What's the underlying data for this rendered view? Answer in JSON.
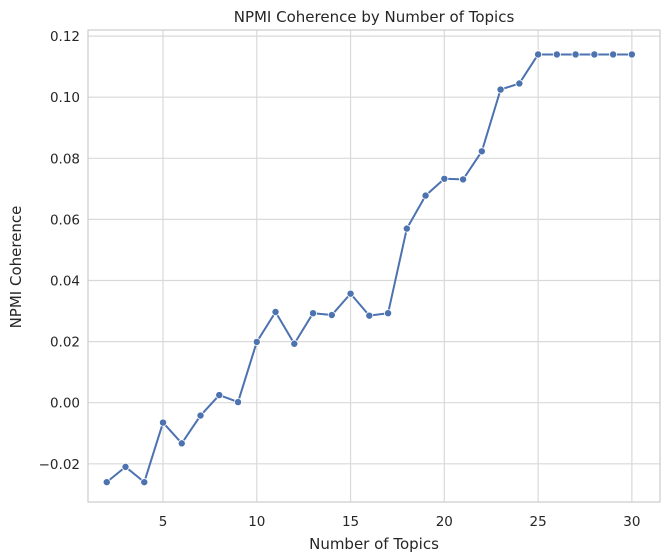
{
  "chart_data": {
    "type": "line",
    "title": "NPMI Coherence by Number of Topics",
    "xlabel": "Number of Topics",
    "ylabel": "NPMI Coherence",
    "xlim": [
      1,
      31.5
    ],
    "ylim": [
      -0.0325,
      0.122
    ],
    "x_ticks": [
      5,
      10,
      15,
      20,
      25,
      30
    ],
    "y_ticks": [
      -0.02,
      0.0,
      0.02,
      0.04,
      0.06,
      0.08,
      0.1,
      0.12
    ],
    "y_tick_labels": [
      "−0.02",
      "0.00",
      "0.02",
      "0.04",
      "0.06",
      "0.08",
      "0.10",
      "0.12"
    ],
    "grid": true,
    "series": [
      {
        "x": [
          2,
          3,
          4,
          5,
          6,
          7,
          8,
          9,
          10,
          11,
          12,
          13,
          14,
          15,
          16,
          17,
          18,
          19,
          20,
          21,
          22,
          23,
          24,
          25,
          26,
          27,
          28,
          29,
          30
        ],
        "values": [
          -0.026,
          -0.021,
          -0.026,
          -0.0065,
          -0.0133,
          -0.0042,
          0.0025,
          0.0002,
          0.0199,
          0.0297,
          0.0193,
          0.0293,
          0.0287,
          0.0357,
          0.0285,
          0.0293,
          0.057,
          0.0678,
          0.0733,
          0.0731,
          0.0823,
          0.1025,
          0.1045,
          0.114,
          0.114,
          0.114,
          0.114,
          0.114,
          0.114
        ],
        "color": "#4c72b0"
      }
    ]
  }
}
